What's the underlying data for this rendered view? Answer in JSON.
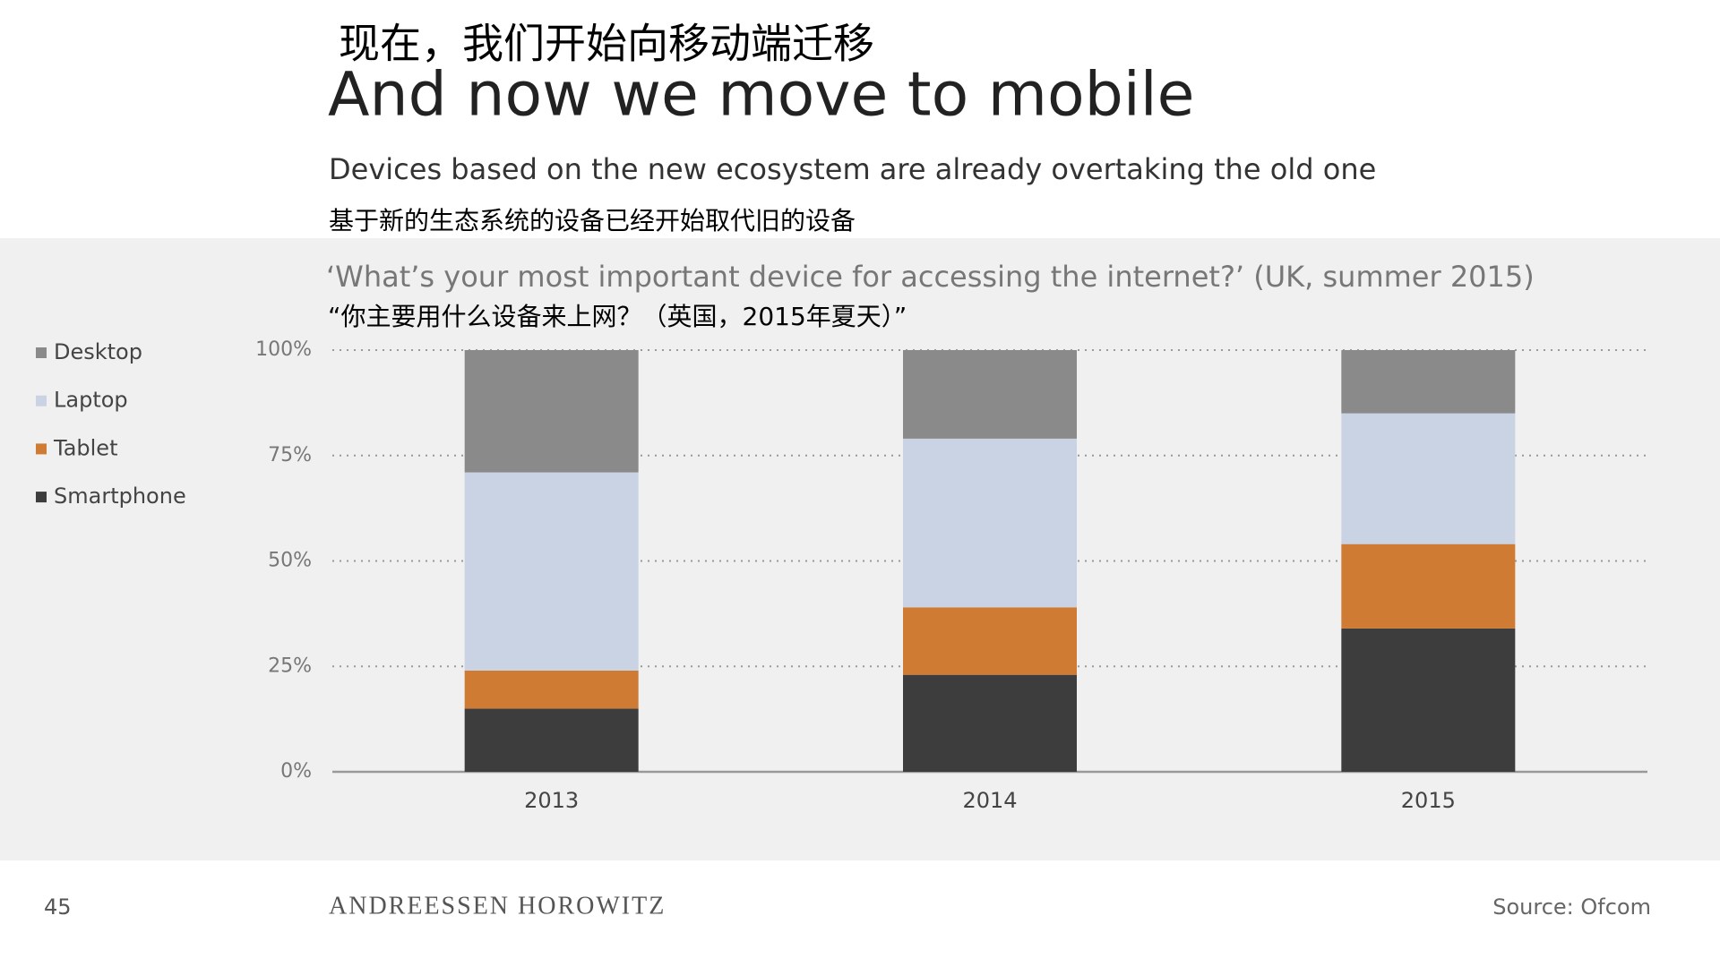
{
  "header": {
    "title_zh": "现在，我们开始向移动端迁移",
    "title": "And now we move to mobile",
    "subtitle": "Devices based on the new ecosystem are already overtaking the old one",
    "subtitle_zh": "基于新的生态系统的设备已经开始取代旧的设备"
  },
  "chart_data": {
    "type": "stacked-bar",
    "title": "‘What’s your most important device for accessing the internet?’ (UK, summer 2015)",
    "subtitle": "“你主要用什么设备来上网？（英国，2015年夏天）”",
    "categories": [
      "2013",
      "2014",
      "2015"
    ],
    "series": [
      {
        "name": "Smartphone",
        "color": "#3d3d3d",
        "values": [
          15,
          23,
          34
        ]
      },
      {
        "name": "Tablet",
        "color": "#cf7b34",
        "values": [
          9,
          16,
          20
        ]
      },
      {
        "name": "Laptop",
        "color": "#c9d3e4",
        "values": [
          47,
          40,
          31
        ]
      },
      {
        "name": "Desktop",
        "color": "#8a8a8a",
        "values": [
          29,
          21,
          15
        ]
      }
    ],
    "ylim": [
      0,
      100
    ],
    "yticks": [
      {
        "value": 0,
        "label": "0%"
      },
      {
        "value": 25,
        "label": "25%"
      },
      {
        "value": 50,
        "label": "50%"
      },
      {
        "value": 75,
        "label": "75%"
      },
      {
        "value": 100,
        "label": "100%"
      }
    ],
    "grid": true,
    "legend": "left"
  },
  "footer": {
    "page": "45",
    "brand": "ANDREESSEN HOROWITZ",
    "source": "Source: Ofcom"
  }
}
